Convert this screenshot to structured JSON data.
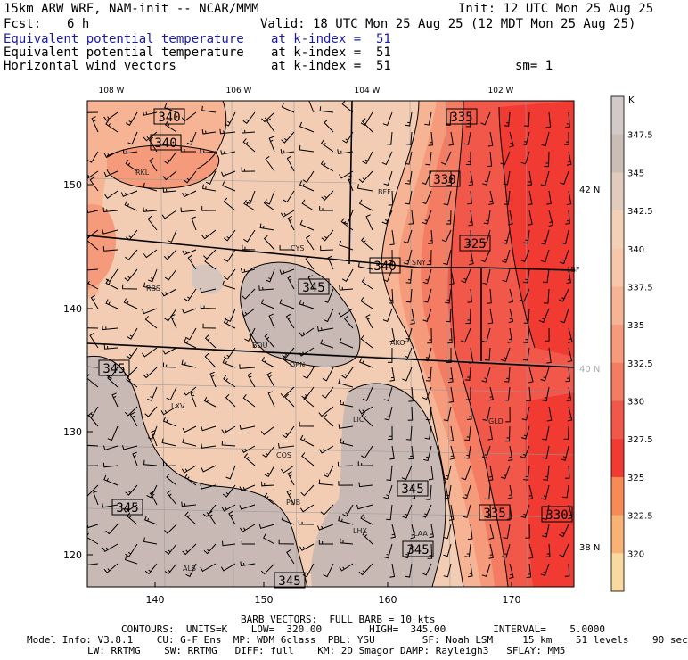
{
  "header": {
    "model_title": "15km ARW WRF, NAM-init -- NCAR/MMM",
    "init": "Init: 12 UTC Mon 25 Aug 25",
    "fcst_label": "Fcst:",
    "fcst_value": "6 h",
    "valid": "Valid: 18 UTC Mon 25 Aug 25 (12 MDT Mon 25 Aug 25)",
    "fields": [
      {
        "name": "Equivalent potential temperature",
        "level": "at k-index =  51",
        "extra": ""
      },
      {
        "name": "Equivalent potential temperature",
        "level": "at k-index =  51",
        "extra": ""
      },
      {
        "name": "Horizontal wind vectors",
        "level": "at k-index =  51",
        "extra": "sm= 1"
      }
    ]
  },
  "map": {
    "top_lon_labels": [
      "108 W",
      "106 W",
      "104 W",
      "102 W"
    ],
    "left_y_ticks": [
      "150",
      "140",
      "130",
      "120"
    ],
    "bottom_x_ticks": [
      "140",
      "150",
      "160",
      "170"
    ],
    "right_lat_labels": [
      "42 N",
      "40 N",
      "38 N"
    ],
    "stations": [
      "RKL",
      "BFF",
      "CYS",
      "SNY",
      "LBF",
      "RBS",
      "BOU",
      "AKO",
      "DEN",
      "LXV",
      "LIC",
      "GLD",
      "COS",
      "PUB",
      "LHX",
      "LAA",
      "ALS"
    ],
    "contour_labels": [
      "340",
      "340",
      "335",
      "330",
      "325",
      "340",
      "345",
      "345",
      "345",
      "345",
      "335",
      "330",
      "345",
      "345"
    ],
    "colors": {
      "low": "#f03a32",
      "mid": "#f6a07a",
      "high": "#f2cdb4",
      "grey": "#c9b9b4"
    }
  },
  "colorbar": {
    "unit": "K",
    "labels": [
      "347.5",
      "345",
      "342.5",
      "340",
      "337.5",
      "335",
      "332.5",
      "330",
      "327.5",
      "325",
      "322.5",
      "320"
    ],
    "colors": [
      "#d2cac8",
      "#c9bdb6",
      "#e0cbbd",
      "#f4d1b6",
      "#f8c6a8",
      "#f6b495",
      "#f59a7a",
      "#f47c62",
      "#f2584a",
      "#f03a32",
      "#f78a55",
      "#f7b274",
      "#fad9a0"
    ]
  },
  "footer": {
    "barb": "BARB VECTORS:  FULL BARB = 10 kts",
    "contours": "CONTOURS:  UNITS=K    LOW=  320.00        HIGH=  345.00        INTERVAL=    5.0000",
    "model_info_1": "Model Info: V3.8.1    CU: G-F Ens  MP: WDM 6class  PBL: YSU        SF: Noah LSM     15 km    51 levels    90 sec",
    "model_info_2": "LW: RRTMG    SW: RRTMG   DIFF: full    KM: 2D Smagor DAMP: Rayleigh3   SFLAY: MM5"
  }
}
